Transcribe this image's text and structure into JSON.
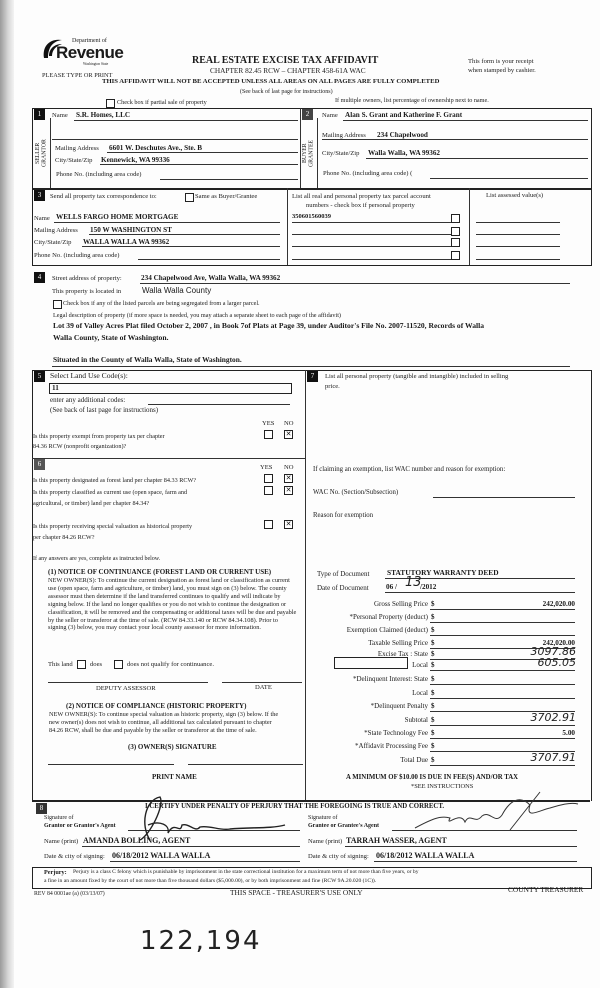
{
  "header": {
    "dept_of": "Department of",
    "revenue": "Revenue",
    "washington_state": "Washington State",
    "please_type": "PLEASE TYPE OR PRINT",
    "title": "REAL ESTATE EXCISE TAX AFFIDAVIT",
    "chapter": "CHAPTER 82.45 RCW – CHAPTER 458-61A WAC",
    "warning": "THIS AFFIDAVIT WILL NOT BE ACCEPTED UNLESS ALL AREAS ON ALL PAGES ARE FULLY COMPLETED",
    "see_back": "(See back of last page for instructions)",
    "receipt_line1": "This form is your receipt",
    "receipt_line2": "when stamped by cashier.",
    "partial_sale_label": "Check box if partial sale of property",
    "multiple_owners": "If multiple owners, list percentage of ownership next to name."
  },
  "seller": {
    "number": "1",
    "side_label_1": "SELLER",
    "side_label_2": "GRANTOR",
    "name_label": "Name",
    "name": "S.R. Homes, LLC",
    "mailing_label": "Mailing Address",
    "mailing": "6601 W. Deschutes Ave., Ste. B",
    "city_label": "City/State/Zip",
    "city": "Kennewick, WA  99336",
    "phone_label": "Phone No. (including area code)"
  },
  "buyer": {
    "number": "2",
    "side_label_1": "BUYER",
    "side_label_2": "GRANTEE",
    "name_label": "Name",
    "name": "Alan S. Grant and Katherine F. Grant",
    "mailing_label": "Mailing Address",
    "mailing": "234 Chapelwood",
    "city_label": "City/State/Zip",
    "city": "Walla Walla, WA  99362",
    "phone_label": "Phone No. (including area code) ("
  },
  "tax_correspondence": {
    "number": "3",
    "label": "Send all property tax correspondence to:",
    "same_label": "Same as Buyer/Grantee",
    "name_label": "Name",
    "name": "WELLS FARGO HOME MORTGAGE",
    "mailing_label": "Mailing Address",
    "mailing": "150 W WASHINGTON ST",
    "city_label": "City/State/Zip",
    "city": "WALLA WALLA  WA 99362",
    "phone_label": "Phone No. (including area code)",
    "parcels_header_1": "List all real and personal property tax parcel account",
    "parcels_header_2": "numbers - check box if personal property",
    "parcels": [
      "350601560039",
      "",
      "",
      ""
    ],
    "assessed_header": "List assessed value(s)"
  },
  "property": {
    "number": "4",
    "street_label": "Street address of property:",
    "street": "234 Chapelwood  Ave, Walla Walla, WA  99362",
    "located_label": "This property is located in",
    "county": "Walla Walla County",
    "segregated_label": "Check box if any of the listed parcels are being segregated from a larger parcel.",
    "legal_label": "Legal description of property (if more space is needed, you may attach a separate sheet to each page of the affidavit)",
    "legal_line1": "Lot  39  of Valley Acres Plat filed October 2, 2007 , in Book 7of Plats at Page 39, under Auditor's File No. 2007-11520, Records of Walla",
    "legal_line2": "Walla County, State of Washington.",
    "situated": "Situated in the County of Walla Walla, State of Washington."
  },
  "land_use": {
    "number": "5",
    "label": "Select Land Use Code(s):",
    "code": "11",
    "additional_label": "enter any additional codes:",
    "see_back": "(See back of last page for instructions)",
    "yes": "YES",
    "no": "NO",
    "exempt_q1": "Is this property exempt from property tax per chapter",
    "exempt_q2": "84.36 RCW (nonprofit organization)?",
    "exempt_answer": "NO"
  },
  "section6": {
    "number": "6",
    "yes": "YES",
    "no": "NO",
    "q1": "Is this property designated as forest land per chapter 84.33 RCW?",
    "q1_answer": "NO",
    "q2_line1": "Is this property classified as current use (open space, farm and",
    "q2_line2": "agricultural, or timber) land per chapter 84.34?",
    "q2_answer": "NO",
    "q3_line1": "Is this property receiving special valuation as historical property",
    "q3_line2": "per chapter 84.26 RCW?",
    "q3_answer": "NO",
    "if_yes": "If any answers are yes, complete as instructed below.",
    "notice1_title": "(1) NOTICE OF CONTINUANCE (FOREST LAND OR CURRENT USE)",
    "notice1_body": "NEW OWNER(S): To continue the current designation as forest land or classification as current use (open space, farm and agriculture, or timber) land, you must sign on (3) below. The county assessor must then determine if the land transferred continues to qualify and will indicate by signing below. If the land no longer qualifies or you do not wish to continue the designation or classification, it will be removed and the compensating or additional taxes will be due and payable by the seller or transferor at the time of sale. (RCW 84.33.140 or RCW 84.34.108). Prior to signing (3) below, you may contact your local county assessor for more information.",
    "this_land": "This land",
    "does": "does",
    "does_not": "does not  qualify for continuance.",
    "deputy_assessor": "DEPUTY ASSESSOR",
    "date": "DATE",
    "notice2_title": "(2) NOTICE OF COMPLIANCE (HISTORIC PROPERTY)",
    "notice2_body": "NEW OWNER(S): To continue special valuation as historic property, sign (3) below. If the new owner(s) does not wish to continue, all additional tax calculated pursuant to chapter 84.26 RCW, shall be due and payable by the seller or transferor at the time of sale.",
    "owner_signature": "(3) OWNER(S) SIGNATURE",
    "print_name": "PRINT NAME"
  },
  "section7": {
    "number": "7",
    "label_line1": "List all personal property (tangible and intangible) included in selling",
    "label_line2": "price.",
    "exemption_label": "If claiming an exemption, list WAC number and reason for exemption:",
    "wac_label": "WAC No. (Section/Subsection)",
    "reason_label": "Reason for exemption"
  },
  "financial": {
    "type_label": "Type of Document",
    "type": "STATUTORY WARRANTY DEED",
    "date_label": "Date of Document",
    "date_month": "06  /",
    "date_day": "13",
    "date_year": "/2012",
    "rows": [
      {
        "label": "Gross Selling Price",
        "value": "242,020.00",
        "handwritten": false
      },
      {
        "label": "*Personal Property (deduct)",
        "value": "",
        "handwritten": false
      },
      {
        "label": "Exemption Claimed (deduct)",
        "value": "",
        "handwritten": false
      },
      {
        "label": "Taxable Selling Price",
        "value": "242,020.00",
        "handwritten": false
      },
      {
        "label": "Excise Tax : State",
        "value": "3097.86",
        "handwritten": true
      },
      {
        "label": "Local",
        "value": "605.05",
        "handwritten": true
      },
      {
        "label": "*Delinquent Interest:  State",
        "value": "",
        "handwritten": false
      },
      {
        "label": "Local",
        "value": "",
        "handwritten": false
      },
      {
        "label": "*Delinquent Penalty",
        "value": "",
        "handwritten": false
      },
      {
        "label": "Subtotal",
        "value": "3702.91",
        "handwritten": true
      },
      {
        "label": "*State Technology Fee",
        "value": "5.00",
        "handwritten": false
      },
      {
        "label": "*Affidavit Processing Fee",
        "value": "",
        "handwritten": false
      },
      {
        "label": "Total Due",
        "value": "3707.91",
        "handwritten": true
      }
    ],
    "currency": "$",
    "minimum_note": "A MINIMUM OF $10.00 IS DUE IN FEE(S) AND/OR TAX",
    "see_instructions": "*SEE INSTRUCTIONS"
  },
  "section8": {
    "number": "8",
    "certify": "I CERTIFY UNDER PENALTY OF PERJURY THAT THE FOREGOING IS TRUE AND CORRECT.",
    "signature_of": "Signature of",
    "grantor_agent": "Grantor or Grantor's Agent",
    "grantee_agent": "Grantee or Grantee's Agent",
    "name_print_label": "Name (print)",
    "grantor_name": "AMANDA BOLLING, AGENT",
    "grantee_name": "TARRAH WASSER, AGENT",
    "date_city_label": "Date & city of signing:",
    "grantor_date": "06/18/2012 WALLA WALLA",
    "grantee_date": "06/18/2012   WALLA WALLA"
  },
  "perjury": {
    "label": "Perjury:",
    "line1": "Perjury is a class C felony which is punishable by imprisonment in the state correctional institution for a maximum term of not more than five years, or by",
    "line2": "a fine in an amount fixed by the court of not more than five thousand dollars ($5,000.00), or by both imprisonment and fine (RCW 9A.20.020 (1C))."
  },
  "footer": {
    "rev": "REV 84 0001ae (a) (03/13/07)",
    "treasurer_space": "THIS SPACE - TREASURER'S USE ONLY",
    "county_treasurer": "COUNTY TREASURER"
  },
  "handwritten_note": "122,194"
}
